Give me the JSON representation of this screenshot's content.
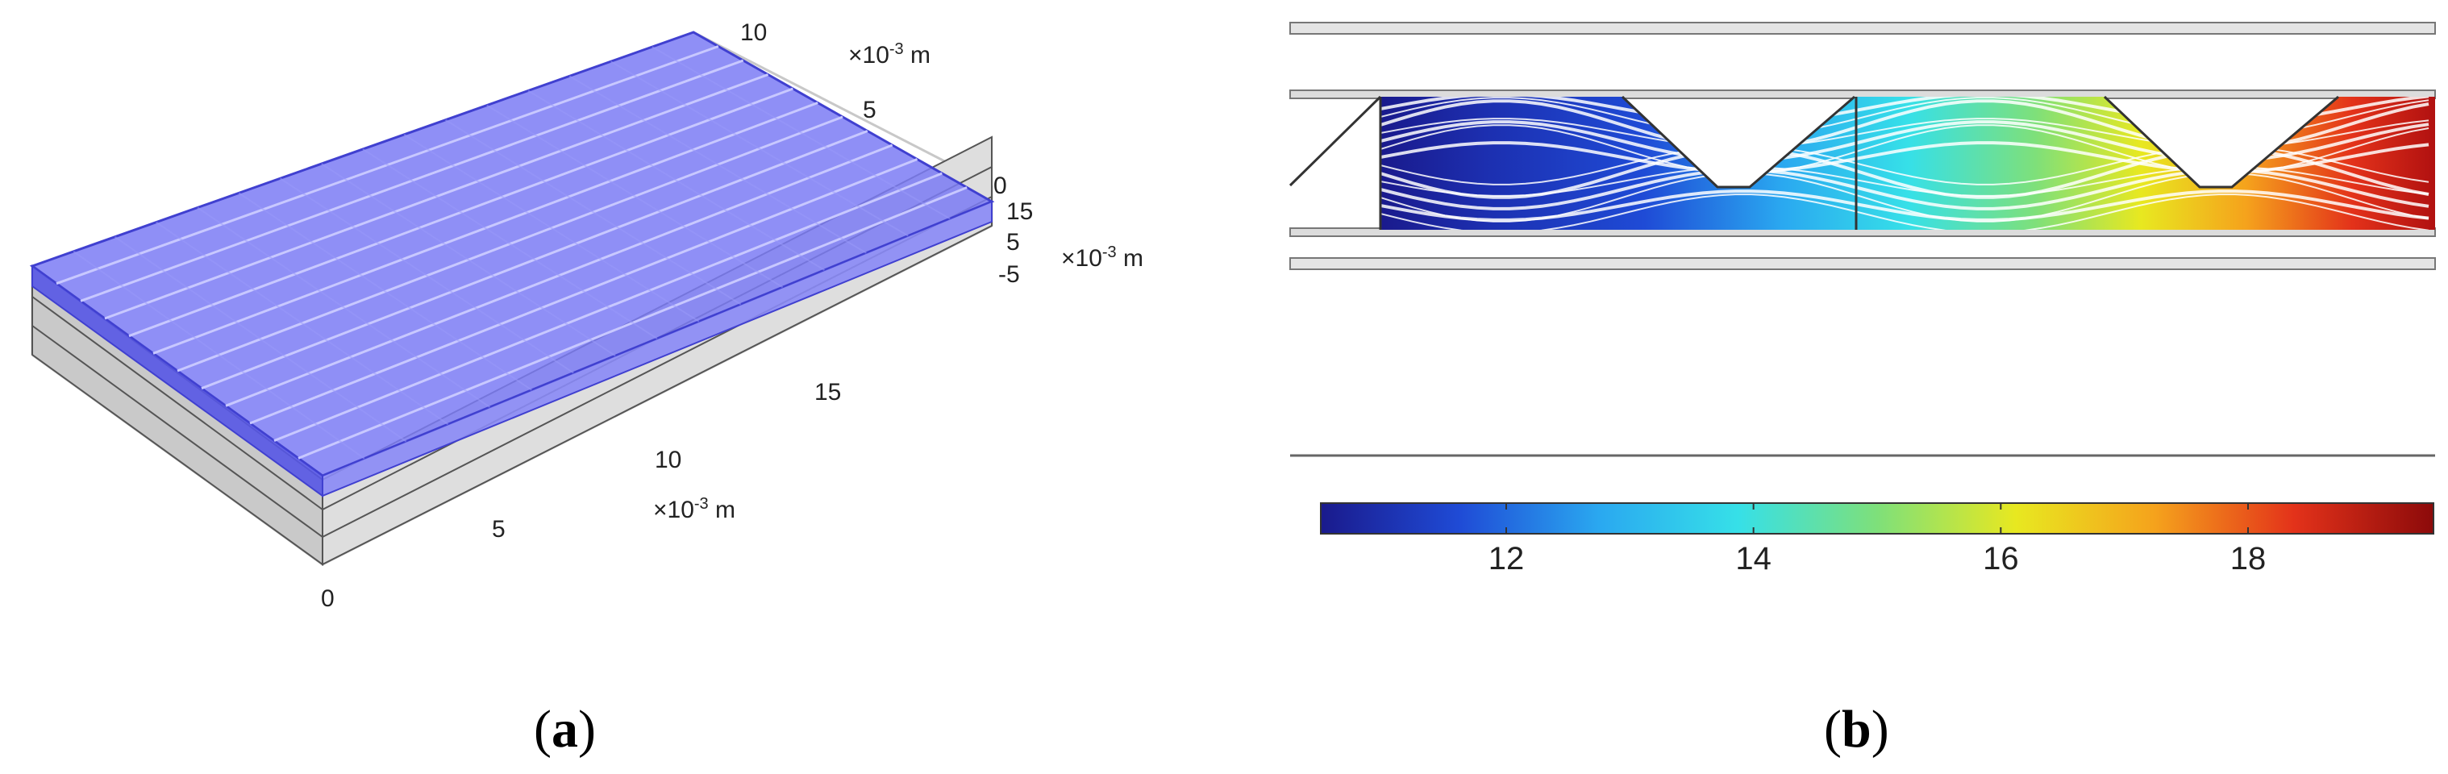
{
  "panel_a": {
    "label_open": "(",
    "label_letter": "a",
    "label_close": ")",
    "axis_x_ticks": [
      "0",
      "5",
      "10",
      "15"
    ],
    "axis_x_unit_prefix": "×10",
    "axis_x_unit_exp": "-3",
    "axis_x_unit_suffix": " m",
    "axis_y_ticks": [
      "0",
      "5",
      "10"
    ],
    "axis_y_unit_prefix": "×10",
    "axis_y_unit_exp": "-3",
    "axis_y_unit_suffix": " m",
    "axis_z_ticks": [
      "15",
      "5",
      "-5"
    ],
    "axis_z_unit_prefix": "×10",
    "axis_z_unit_exp": "-3",
    "axis_z_unit_suffix": " m",
    "channel_count": 12,
    "colors": {
      "fluid": "#6a6af2",
      "fluid_edge": "#4040d0",
      "solid": "#d8d8d8",
      "solid_edge": "#555555"
    }
  },
  "panel_b": {
    "label_open": "(",
    "label_letter": "b",
    "label_close": ")",
    "colorbar": {
      "colormap": "rainbow",
      "min": 10.5,
      "max": 19.5,
      "ticks": [
        "12",
        "14",
        "16",
        "18"
      ],
      "stops": [
        "#1a1a8c",
        "#1f4bd6",
        "#2aa8f0",
        "#36e0e8",
        "#7ee07a",
        "#e8e820",
        "#f5a21c",
        "#e3321a",
        "#8c0a0a"
      ]
    }
  }
}
